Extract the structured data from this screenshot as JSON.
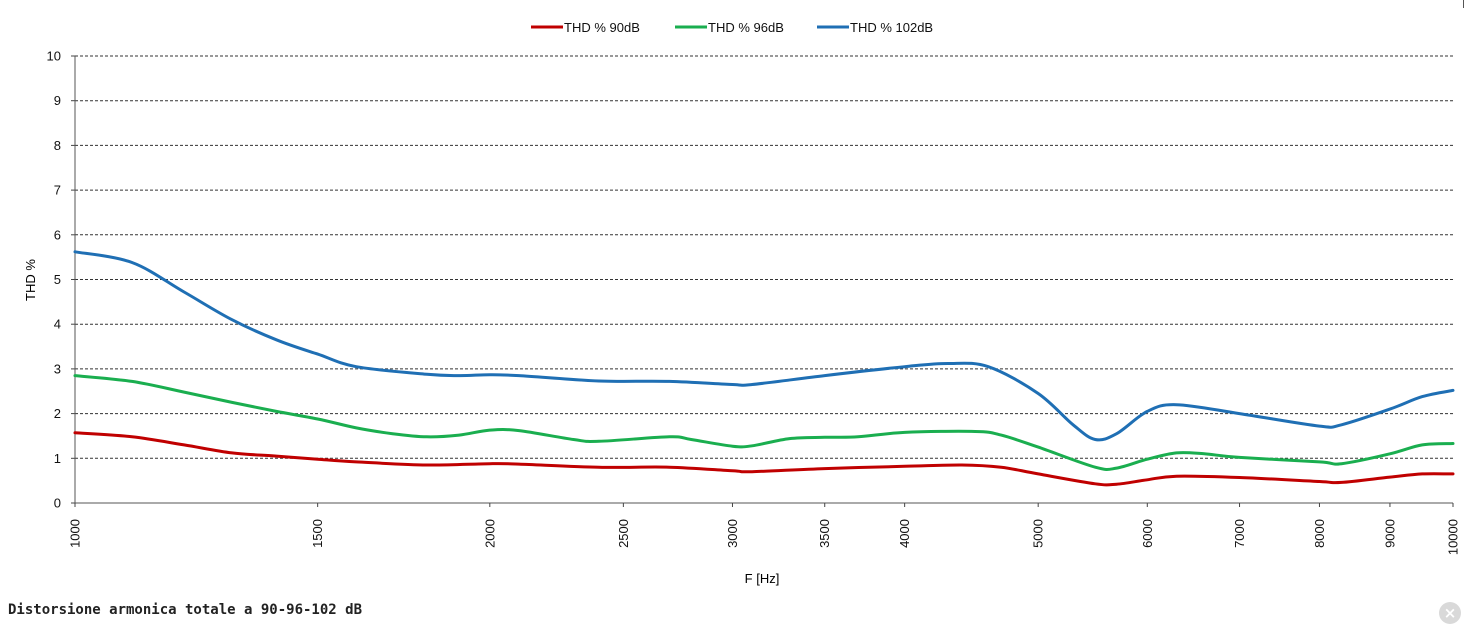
{
  "chart_data": {
    "type": "line",
    "xscale": "log",
    "xlabel": "F [Hz]",
    "ylabel": "THD %",
    "xlim": [
      1000,
      10000
    ],
    "ylim": [
      0,
      10
    ],
    "grid": true,
    "legend_position": "top-center",
    "x_ticks": [
      "1000",
      "1500",
      "2000",
      "2500",
      "3000",
      "3500",
      "4000",
      "5000",
      "6000",
      "7000",
      "8000",
      "9000",
      "10000"
    ],
    "y_ticks": [
      "0",
      "1",
      "2",
      "3",
      "4",
      "5",
      "6",
      "7",
      "8",
      "9",
      "10"
    ],
    "series": [
      {
        "name": "THD % 90dB",
        "color": "#c00000",
        "points": [
          [
            1000,
            1.57
          ],
          [
            1100,
            1.48
          ],
          [
            1200,
            1.3
          ],
          [
            1300,
            1.12
          ],
          [
            1400,
            1.05
          ],
          [
            1500,
            0.98
          ],
          [
            1600,
            0.92
          ],
          [
            1800,
            0.85
          ],
          [
            2000,
            0.88
          ],
          [
            2100,
            0.87
          ],
          [
            2400,
            0.8
          ],
          [
            2700,
            0.8
          ],
          [
            3000,
            0.72
          ],
          [
            3100,
            0.7
          ],
          [
            3500,
            0.77
          ],
          [
            4000,
            0.82
          ],
          [
            4400,
            0.85
          ],
          [
            4700,
            0.8
          ],
          [
            5000,
            0.65
          ],
          [
            5500,
            0.43
          ],
          [
            5700,
            0.42
          ],
          [
            6000,
            0.52
          ],
          [
            6300,
            0.6
          ],
          [
            7000,
            0.57
          ],
          [
            8000,
            0.48
          ],
          [
            8300,
            0.46
          ],
          [
            9000,
            0.58
          ],
          [
            9500,
            0.65
          ],
          [
            10000,
            0.65
          ]
        ]
      },
      {
        "name": "THD % 96dB",
        "color": "#1aae4f",
        "points": [
          [
            1000,
            2.85
          ],
          [
            1100,
            2.72
          ],
          [
            1200,
            2.48
          ],
          [
            1300,
            2.25
          ],
          [
            1400,
            2.05
          ],
          [
            1500,
            1.88
          ],
          [
            1600,
            1.68
          ],
          [
            1700,
            1.55
          ],
          [
            1800,
            1.48
          ],
          [
            1900,
            1.52
          ],
          [
            2000,
            1.63
          ],
          [
            2100,
            1.62
          ],
          [
            2300,
            1.42
          ],
          [
            2400,
            1.38
          ],
          [
            2700,
            1.48
          ],
          [
            2800,
            1.42
          ],
          [
            3000,
            1.27
          ],
          [
            3100,
            1.28
          ],
          [
            3300,
            1.44
          ],
          [
            3500,
            1.47
          ],
          [
            3700,
            1.48
          ],
          [
            4000,
            1.58
          ],
          [
            4500,
            1.6
          ],
          [
            4700,
            1.52
          ],
          [
            5000,
            1.25
          ],
          [
            5500,
            0.8
          ],
          [
            5700,
            0.78
          ],
          [
            6000,
            0.98
          ],
          [
            6300,
            1.12
          ],
          [
            6600,
            1.1
          ],
          [
            7000,
            1.02
          ],
          [
            8000,
            0.92
          ],
          [
            8300,
            0.88
          ],
          [
            9000,
            1.1
          ],
          [
            9500,
            1.3
          ],
          [
            10000,
            1.33
          ]
        ]
      },
      {
        "name": "THD % 102dB",
        "color": "#1f6fb4",
        "points": [
          [
            1000,
            5.62
          ],
          [
            1100,
            5.38
          ],
          [
            1200,
            4.72
          ],
          [
            1300,
            4.1
          ],
          [
            1400,
            3.65
          ],
          [
            1500,
            3.33
          ],
          [
            1600,
            3.05
          ],
          [
            1800,
            2.88
          ],
          [
            1900,
            2.85
          ],
          [
            2000,
            2.87
          ],
          [
            2100,
            2.85
          ],
          [
            2400,
            2.73
          ],
          [
            2700,
            2.72
          ],
          [
            3000,
            2.65
          ],
          [
            3100,
            2.65
          ],
          [
            3500,
            2.85
          ],
          [
            4000,
            3.05
          ],
          [
            4300,
            3.12
          ],
          [
            4600,
            3.05
          ],
          [
            5000,
            2.45
          ],
          [
            5300,
            1.75
          ],
          [
            5500,
            1.42
          ],
          [
            5700,
            1.55
          ],
          [
            6000,
            2.05
          ],
          [
            6300,
            2.2
          ],
          [
            7000,
            2.0
          ],
          [
            8000,
            1.72
          ],
          [
            8300,
            1.75
          ],
          [
            9000,
            2.1
          ],
          [
            9500,
            2.38
          ],
          [
            10000,
            2.52
          ]
        ]
      }
    ]
  },
  "caption": "Distorsione armonica totale a 90-96-102 dB",
  "close_icon": "close-icon"
}
